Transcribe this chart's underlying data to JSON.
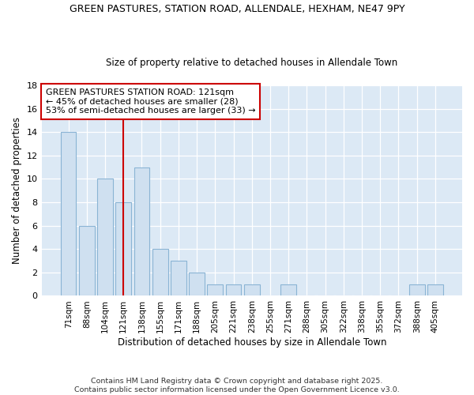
{
  "title_line1": "GREEN PASTURES, STATION ROAD, ALLENDALE, HEXHAM, NE47 9PY",
  "title_line2": "Size of property relative to detached houses in Allendale Town",
  "xlabel": "Distribution of detached houses by size in Allendale Town",
  "ylabel": "Number of detached properties",
  "categories": [
    "71sqm",
    "88sqm",
    "104sqm",
    "121sqm",
    "138sqm",
    "155sqm",
    "171sqm",
    "188sqm",
    "205sqm",
    "221sqm",
    "238sqm",
    "255sqm",
    "271sqm",
    "288sqm",
    "305sqm",
    "322sqm",
    "338sqm",
    "355sqm",
    "372sqm",
    "388sqm",
    "405sqm"
  ],
  "values": [
    14,
    6,
    10,
    8,
    11,
    4,
    3,
    2,
    1,
    1,
    1,
    0,
    1,
    0,
    0,
    0,
    0,
    0,
    0,
    1,
    1
  ],
  "bar_color": "#cfe0f0",
  "bar_edge_color": "#8ab4d4",
  "property_line_x": 3,
  "property_line_color": "#cc0000",
  "ylim": [
    0,
    18
  ],
  "yticks": [
    0,
    2,
    4,
    6,
    8,
    10,
    12,
    14,
    16,
    18
  ],
  "annotation_box_facecolor": "#ffffff",
  "annotation_box_edge": "#cc0000",
  "annotation_text": "GREEN PASTURES STATION ROAD: 121sqm\n← 45% of detached houses are smaller (28)\n53% of semi-detached houses are larger (33) →",
  "footer_text": "Contains HM Land Registry data © Crown copyright and database right 2025.\nContains public sector information licensed under the Open Government Licence v3.0.",
  "fig_background_color": "#ffffff",
  "plot_bg_color": "#dce9f5",
  "grid_color": "#ffffff"
}
